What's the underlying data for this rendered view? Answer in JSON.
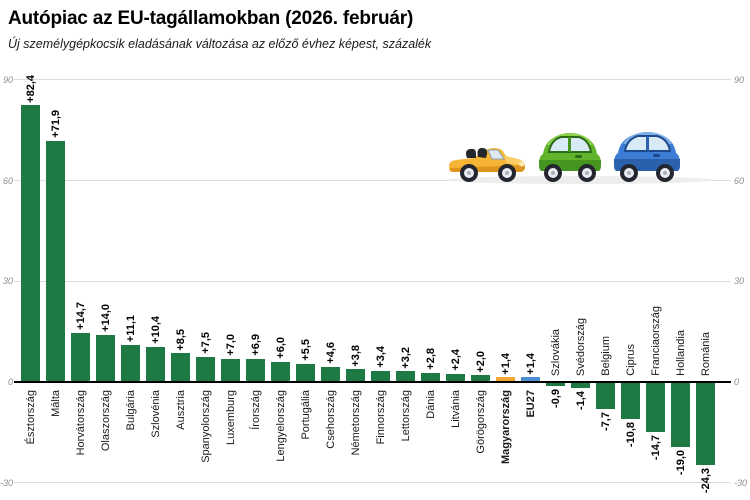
{
  "header": {
    "title": "Autópiac az EU-tagállamokban (2026. február)",
    "subtitle": "Új személygépkocsik eladásának változása az előző évhez képest, százalék"
  },
  "icons": {
    "cars": [
      "convertible-car-icon",
      "hatchback-car-green-icon",
      "hatchback-car-blue-icon"
    ]
  },
  "chart_data": {
    "type": "bar",
    "title": "Autópiac az EU-tagállamokban (2026. február)",
    "subtitle": "Új személygépkocsik eladásának változása az előző évhez képest, százalék",
    "xlabel": "",
    "ylabel": "",
    "ylim": [
      -30,
      90
    ],
    "yticks": [
      90,
      60,
      30,
      0,
      -30
    ],
    "grid": true,
    "legend": "none",
    "bars": [
      {
        "category": "Észtország",
        "value": 82.4,
        "label": "+82,4"
      },
      {
        "category": "Málta",
        "value": 71.9,
        "label": "+71,9"
      },
      {
        "category": "Horvátország",
        "value": 14.7,
        "label": "+14,7"
      },
      {
        "category": "Olaszország",
        "value": 14.0,
        "label": "+14,0"
      },
      {
        "category": "Bulgária",
        "value": 11.1,
        "label": "+11,1"
      },
      {
        "category": "Szlovénia",
        "value": 10.4,
        "label": "+10,4"
      },
      {
        "category": "Ausztria",
        "value": 8.5,
        "label": "+8,5"
      },
      {
        "category": "Spanyolország",
        "value": 7.5,
        "label": "+7,5"
      },
      {
        "category": "Luxemburg",
        "value": 7.0,
        "label": "+7,0"
      },
      {
        "category": "Írország",
        "value": 6.9,
        "label": "+6,9"
      },
      {
        "category": "Lengyelország",
        "value": 6.0,
        "label": "+6,0"
      },
      {
        "category": "Portugália",
        "value": 5.5,
        "label": "+5,5"
      },
      {
        "category": "Csehország",
        "value": 4.6,
        "label": "+4,6"
      },
      {
        "category": "Németország",
        "value": 3.8,
        "label": "+3,8"
      },
      {
        "category": "Finnország",
        "value": 3.4,
        "label": "+3,4"
      },
      {
        "category": "Lettország",
        "value": 3.2,
        "label": "+3,2"
      },
      {
        "category": "Dánia",
        "value": 2.8,
        "label": "+2,8"
      },
      {
        "category": "Litvánia",
        "value": 2.4,
        "label": "+2,4"
      },
      {
        "category": "Görögország",
        "value": 2.0,
        "label": "+2,0"
      },
      {
        "category": "Magyarország",
        "value": 1.4,
        "label": "+1,4",
        "color": "orange",
        "bold": true
      },
      {
        "category": "EU27",
        "value": 1.4,
        "label": "+1,4",
        "color": "blue",
        "bold": true
      },
      {
        "category": "Szlovákia",
        "value": -0.9,
        "label": "-0,9"
      },
      {
        "category": "Svédország",
        "value": -1.4,
        "label": "-1,4"
      },
      {
        "category": "Belgium",
        "value": -7.7,
        "label": "-7,7"
      },
      {
        "category": "Ciprus",
        "value": -10.8,
        "label": "-10,8"
      },
      {
        "category": "Franciaország",
        "value": -14.7,
        "label": "-14,7"
      },
      {
        "category": "Hollandia",
        "value": -19.0,
        "label": "-19,0"
      },
      {
        "category": "Románia",
        "value": -24.3,
        "label": "-24,3"
      }
    ],
    "colors": {
      "default": "#1e7a44",
      "orange": "#f0a834",
      "blue": "#4a8fd1",
      "grid": "#dcdcdc",
      "zero_axis": "#000000",
      "tick_text": "#8e8e8e"
    }
  }
}
